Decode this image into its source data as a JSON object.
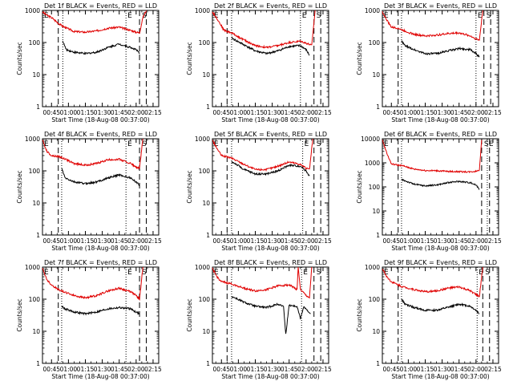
{
  "figure": {
    "ylabel": "Counts/sec",
    "xlabel": "Start Time (18-Aug-08 00:37:00)",
    "x_ticks": [
      "00:45",
      "01:00",
      "01:15",
      "01:30",
      "01:45",
      "02:00",
      "02:15"
    ],
    "y_ticks": [
      "1",
      "10",
      "100",
      "1000"
    ],
    "y_ticks_10k": [
      "1",
      "10",
      "100",
      "1000",
      "10000"
    ],
    "series_names": [
      "Events",
      "LLD"
    ],
    "colors": {
      "events": "#000000",
      "lld": "#e00000",
      "axes": "#000000"
    },
    "markers": {
      "e_left": "E",
      "e_right": "E",
      "s_right": "S"
    }
  },
  "chart_data": [
    {
      "type": "line",
      "title": "Det 1f BLACK = Events, RED = LLD",
      "ylim": [
        1,
        1000
      ],
      "log_y": true,
      "xlim": [
        "00:37",
        "02:20"
      ],
      "vlines_dashed": [
        "00:51",
        "02:03",
        "02:09"
      ],
      "vlines_dotted": [
        "00:55",
        "01:51"
      ],
      "series": [
        {
          "name": "LLD",
          "x": [
            "00:37",
            "00:41",
            "00:45",
            "00:51",
            "00:55",
            "01:05",
            "01:15",
            "01:25",
            "01:35",
            "01:45",
            "01:55",
            "02:00",
            "02:03",
            "02:06",
            "02:09"
          ],
          "y": [
            900,
            700,
            600,
            400,
            320,
            220,
            210,
            230,
            280,
            300,
            240,
            210,
            200,
            600,
            1000
          ]
        },
        {
          "name": "Events",
          "x": [
            "00:55",
            "00:58",
            "01:05",
            "01:15",
            "01:25",
            "01:35",
            "01:45",
            "01:55",
            "02:00",
            "02:03"
          ],
          "y": [
            110,
            60,
            50,
            45,
            50,
            70,
            90,
            70,
            60,
            45
          ]
        }
      ]
    },
    {
      "type": "line",
      "title": "Det 2f BLACK = Events, RED = LLD",
      "ylim": [
        1,
        1000
      ],
      "log_y": true,
      "xlim": [
        "00:37",
        "02:20"
      ],
      "vlines_dashed": [
        "00:50",
        "02:07",
        "02:13"
      ],
      "vlines_dotted": [
        "00:54",
        "01:55"
      ],
      "series": [
        {
          "name": "LLD",
          "x": [
            "00:37",
            "00:42",
            "00:47",
            "00:50",
            "00:54",
            "01:05",
            "01:15",
            "01:25",
            "01:35",
            "01:45",
            "01:55",
            "02:02",
            "02:05",
            "02:08"
          ],
          "y": [
            900,
            500,
            250,
            220,
            200,
            120,
            80,
            70,
            80,
            100,
            110,
            90,
            80,
            1000
          ]
        },
        {
          "name": "Events",
          "x": [
            "00:54",
            "00:57",
            "01:05",
            "01:15",
            "01:25",
            "01:35",
            "01:45",
            "01:55",
            "02:00",
            "02:03"
          ],
          "y": [
            140,
            120,
            85,
            55,
            45,
            55,
            75,
            80,
            60,
            40
          ]
        }
      ]
    },
    {
      "type": "line",
      "title": "Det 3f BLACK = Events, RED = LLD",
      "ylim": [
        1,
        1000
      ],
      "log_y": true,
      "xlim": [
        "00:37",
        "02:20"
      ],
      "vlines_dashed": [
        "00:51",
        "02:07",
        "02:13"
      ],
      "vlines_dotted": [
        "00:54",
        "02:00"
      ],
      "series": [
        {
          "name": "LLD",
          "x": [
            "00:37",
            "00:41",
            "00:45",
            "00:51",
            "00:54",
            "01:05",
            "01:15",
            "01:25",
            "01:35",
            "01:45",
            "01:55",
            "02:00",
            "02:03",
            "02:06"
          ],
          "y": [
            900,
            500,
            300,
            280,
            250,
            180,
            160,
            170,
            190,
            200,
            160,
            130,
            120,
            1000
          ]
        },
        {
          "name": "Events",
          "x": [
            "00:54",
            "00:57",
            "01:05",
            "01:15",
            "01:25",
            "01:35",
            "01:45",
            "01:55",
            "02:00",
            "02:03"
          ],
          "y": [
            110,
            80,
            60,
            45,
            45,
            55,
            65,
            60,
            45,
            35
          ]
        }
      ]
    },
    {
      "type": "line",
      "title": "Det 4f BLACK = Events, RED = LLD",
      "ylim": [
        1,
        1000
      ],
      "log_y": true,
      "xlim": [
        "00:37",
        "02:20"
      ],
      "vlines_dashed": [
        "00:51",
        "02:03",
        "02:09"
      ],
      "vlines_dotted": [
        "00:54",
        "01:51"
      ],
      "series": [
        {
          "name": "LLD",
          "x": [
            "00:37",
            "00:41",
            "00:45",
            "00:51",
            "00:54",
            "01:05",
            "01:15",
            "01:25",
            "01:35",
            "01:45",
            "01:55",
            "02:00",
            "02:03",
            "02:06"
          ],
          "y": [
            900,
            400,
            300,
            280,
            260,
            170,
            150,
            170,
            220,
            230,
            170,
            130,
            120,
            1000
          ]
        },
        {
          "name": "Events",
          "x": [
            "00:54",
            "00:57",
            "01:05",
            "01:15",
            "01:25",
            "01:35",
            "01:45",
            "01:55",
            "02:00",
            "02:03"
          ],
          "y": [
            120,
            60,
            45,
            40,
            45,
            60,
            75,
            60,
            45,
            35
          ]
        }
      ]
    },
    {
      "type": "line",
      "title": "Det 5f BLACK = Events, RED = LLD",
      "ylim": [
        1,
        1000
      ],
      "log_y": true,
      "xlim": [
        "00:37",
        "02:20"
      ],
      "vlines_dashed": [
        "00:50",
        "02:07",
        "02:13"
      ],
      "vlines_dotted": [
        "00:54",
        "01:57"
      ],
      "series": [
        {
          "name": "LLD",
          "x": [
            "00:37",
            "00:41",
            "00:45",
            "00:50",
            "00:54",
            "01:05",
            "01:15",
            "01:25",
            "01:35",
            "01:45",
            "01:55",
            "02:00",
            "02:03",
            "02:06"
          ],
          "y": [
            900,
            500,
            300,
            270,
            250,
            160,
            110,
            110,
            140,
            190,
            160,
            120,
            110,
            1000
          ]
        },
        {
          "name": "Events",
          "x": [
            "00:54",
            "00:57",
            "01:05",
            "01:15",
            "01:25",
            "01:35",
            "01:45",
            "01:55",
            "02:00",
            "02:03"
          ],
          "y": [
            190,
            170,
            110,
            80,
            80,
            100,
            150,
            140,
            100,
            70
          ]
        }
      ]
    },
    {
      "type": "line",
      "title": "Det 6f BLACK = Events, RED = LLD",
      "ylim": [
        1,
        10000
      ],
      "log_y": true,
      "xlim": [
        "00:37",
        "02:20"
      ],
      "vlines_dashed": [
        "00:51",
        "02:05",
        "02:12"
      ],
      "vlines_dotted": [
        "00:54",
        "02:10"
      ],
      "series": [
        {
          "name": "LLD",
          "x": [
            "00:37",
            "00:41",
            "00:45",
            "00:51",
            "00:54",
            "01:05",
            "01:15",
            "01:25",
            "01:35",
            "01:45",
            "01:55",
            "02:00",
            "02:03",
            "02:05"
          ],
          "y": [
            9000,
            2500,
            900,
            800,
            780,
            550,
            480,
            470,
            440,
            430,
            420,
            450,
            500,
            9000
          ]
        },
        {
          "name": "Events",
          "x": [
            "00:54",
            "00:57",
            "01:05",
            "01:15",
            "01:25",
            "01:35",
            "01:45",
            "01:55",
            "02:00",
            "02:03"
          ],
          "y": [
            200,
            180,
            130,
            110,
            120,
            150,
            170,
            150,
            120,
            80
          ]
        }
      ]
    },
    {
      "type": "line",
      "title": "Det 7f BLACK = Events, RED = LLD",
      "ylim": [
        1,
        1000
      ],
      "log_y": true,
      "xlim": [
        "00:37",
        "02:20"
      ],
      "vlines_dashed": [
        "00:51",
        "02:03",
        "02:09"
      ],
      "vlines_dotted": [
        "00:54",
        "01:51"
      ],
      "series": [
        {
          "name": "LLD",
          "x": [
            "00:37",
            "00:41",
            "00:45",
            "00:51",
            "00:54",
            "01:05",
            "01:15",
            "01:25",
            "01:35",
            "01:45",
            "01:55",
            "02:00",
            "02:03",
            "02:06"
          ],
          "y": [
            900,
            400,
            280,
            200,
            180,
            130,
            110,
            130,
            180,
            220,
            170,
            130,
            100,
            1000
          ]
        },
        {
          "name": "Events",
          "x": [
            "00:54",
            "00:57",
            "01:05",
            "01:15",
            "01:25",
            "01:35",
            "01:45",
            "01:55",
            "02:00",
            "02:03"
          ],
          "y": [
            60,
            50,
            40,
            35,
            40,
            50,
            55,
            50,
            40,
            35
          ]
        }
      ]
    },
    {
      "type": "line",
      "title": "Det 8f BLACK = Events, RED = LLD",
      "ylim": [
        1,
        1000
      ],
      "log_y": true,
      "xlim": [
        "00:37",
        "02:20"
      ],
      "vlines_dashed": [
        "00:50",
        "02:07",
        "02:13"
      ],
      "vlines_dotted": [
        "00:54",
        "01:56"
      ],
      "series": [
        {
          "name": "LLD",
          "x": [
            "00:37",
            "00:41",
            "00:45",
            "00:50",
            "00:54",
            "01:05",
            "01:15",
            "01:25",
            "01:35",
            "01:45",
            "01:52",
            "01:53",
            "01:55",
            "02:00",
            "02:03",
            "02:05"
          ],
          "y": [
            900,
            500,
            350,
            320,
            300,
            220,
            180,
            200,
            260,
            280,
            200,
            1000,
            200,
            130,
            110,
            1000
          ]
        },
        {
          "name": "Events",
          "x": [
            "00:54",
            "00:57",
            "01:05",
            "01:15",
            "01:25",
            "01:35",
            "01:40",
            "01:42",
            "01:45",
            "01:52",
            "01:55",
            "01:58",
            "02:02",
            "02:04"
          ],
          "y": [
            120,
            110,
            80,
            60,
            55,
            70,
            60,
            8,
            65,
            60,
            25,
            60,
            40,
            35
          ]
        }
      ]
    },
    {
      "type": "line",
      "title": "Det 9f BLACK = Events, RED = LLD",
      "ylim": [
        1,
        1000
      ],
      "log_y": true,
      "xlim": [
        "00:37",
        "02:20"
      ],
      "vlines_dashed": [
        "00:51",
        "02:06",
        "02:12"
      ],
      "vlines_dotted": [
        "00:54",
        "02:01"
      ],
      "series": [
        {
          "name": "LLD",
          "x": [
            "00:37",
            "00:41",
            "00:45",
            "00:51",
            "00:54",
            "01:05",
            "01:15",
            "01:25",
            "01:35",
            "01:45",
            "01:55",
            "02:00",
            "02:03",
            "02:06"
          ],
          "y": [
            900,
            500,
            350,
            280,
            250,
            200,
            170,
            180,
            220,
            240,
            180,
            140,
            120,
            1000
          ]
        },
        {
          "name": "Events",
          "x": [
            "00:54",
            "00:57",
            "01:05",
            "01:15",
            "01:25",
            "01:35",
            "01:45",
            "01:55",
            "02:00",
            "02:03"
          ],
          "y": [
            100,
            70,
            55,
            45,
            45,
            55,
            70,
            60,
            45,
            35
          ]
        }
      ]
    }
  ]
}
